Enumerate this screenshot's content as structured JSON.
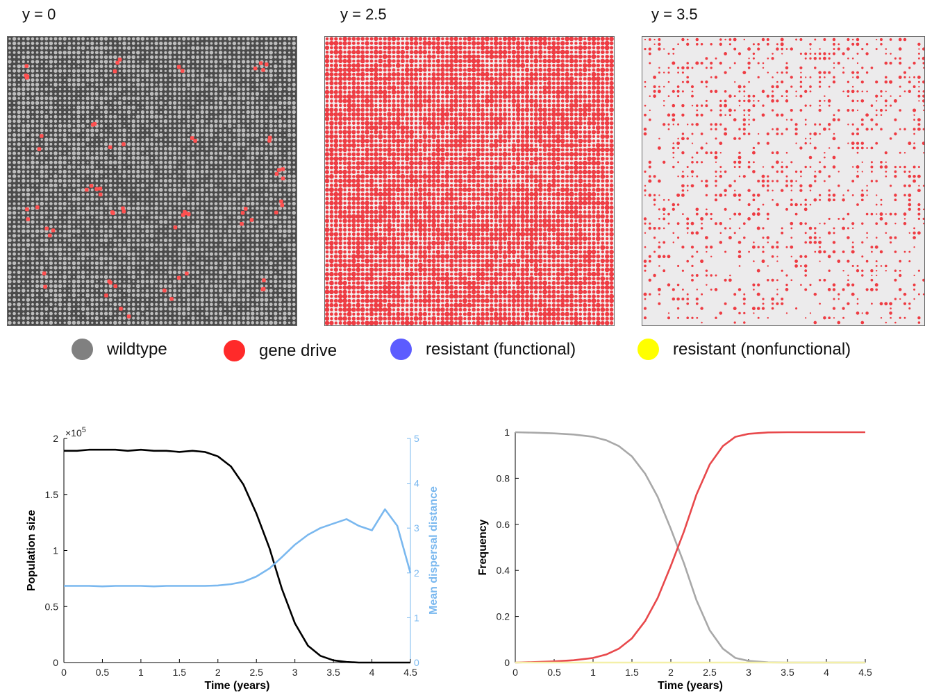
{
  "panels": [
    {
      "title": "y = 0",
      "background": "#4a4a4a",
      "grid": "#bfbfbf"
    },
    {
      "title": "y = 2.5",
      "background": "#f2f2f2",
      "grid": "#ee3b42"
    },
    {
      "title": "y = 3.5",
      "background": "#ecebec",
      "grid": "#ee3b42"
    }
  ],
  "legend": [
    {
      "label": "wildtype",
      "color": "#808080"
    },
    {
      "label": "gene drive",
      "color": "#ff2a2a"
    },
    {
      "label": "resistant (functional)",
      "color": "#5c5cff"
    },
    {
      "label": "resistant (nonfunctional)",
      "color": "#ffff00"
    }
  ],
  "chart_data": [
    {
      "type": "line",
      "xlabel": "Time (years)",
      "ylabel": "Population size",
      "y2label": "Mean dispersal distance",
      "xlim": [
        0,
        4.5
      ],
      "ylim": [
        0,
        2
      ],
      "y2lim": [
        0,
        5
      ],
      "yexponent": "×10",
      "yexponent_power": "5",
      "xticks": [
        "0",
        "0.5",
        "1",
        "1.5",
        "2",
        "2.5",
        "3",
        "3.5",
        "4",
        "4.5"
      ],
      "yticks": [
        "0",
        "0.5",
        "1",
        "1.5",
        "2"
      ],
      "y2ticks": [
        "0",
        "1",
        "2",
        "3",
        "4",
        "5"
      ],
      "series": [
        {
          "axis": "left",
          "color": "#000000",
          "x": [
            0,
            0.17,
            0.33,
            0.5,
            0.67,
            0.83,
            1.0,
            1.17,
            1.33,
            1.5,
            1.67,
            1.83,
            2.0,
            2.17,
            2.33,
            2.5,
            2.67,
            2.83,
            3.0,
            3.17,
            3.33,
            3.5,
            3.67,
            3.83,
            4.0,
            4.17,
            4.33,
            4.5
          ],
          "values": [
            1.89,
            1.89,
            1.9,
            1.9,
            1.9,
            1.89,
            1.9,
            1.89,
            1.89,
            1.88,
            1.89,
            1.88,
            1.84,
            1.75,
            1.59,
            1.33,
            1.02,
            0.66,
            0.35,
            0.15,
            0.06,
            0.02,
            0.005,
            0,
            0,
            0,
            0,
            0
          ]
        },
        {
          "axis": "right",
          "color": "#7ab8ef",
          "x": [
            0,
            0.17,
            0.33,
            0.5,
            0.67,
            0.83,
            1.0,
            1.17,
            1.33,
            1.5,
            1.67,
            1.83,
            2.0,
            2.17,
            2.33,
            2.5,
            2.67,
            2.83,
            3.0,
            3.17,
            3.33,
            3.5,
            3.67,
            3.83,
            4.0,
            4.17,
            4.33,
            4.5
          ],
          "values": [
            1.71,
            1.71,
            1.71,
            1.7,
            1.71,
            1.71,
            1.71,
            1.7,
            1.71,
            1.71,
            1.71,
            1.71,
            1.72,
            1.75,
            1.8,
            1.92,
            2.1,
            2.35,
            2.63,
            2.85,
            3.0,
            3.1,
            3.2,
            3.05,
            2.95,
            3.42,
            3.05,
            2.0
          ]
        }
      ]
    },
    {
      "type": "line",
      "xlabel": "Time (years)",
      "ylabel": "Frequency",
      "xlim": [
        0,
        4.5
      ],
      "ylim": [
        0,
        1
      ],
      "xticks": [
        "0",
        "0.5",
        "1",
        "1.5",
        "2",
        "2.5",
        "3",
        "3.5",
        "4",
        "4.5"
      ],
      "yticks": [
        "0",
        "0.2",
        "0.4",
        "0.6",
        "0.8",
        "1"
      ],
      "series": [
        {
          "color": "#a8a8a8",
          "x": [
            0,
            0.25,
            0.5,
            0.75,
            1.0,
            1.17,
            1.33,
            1.5,
            1.67,
            1.83,
            2.0,
            2.17,
            2.33,
            2.5,
            2.67,
            2.83,
            3.0,
            3.25,
            3.5,
            4.0,
            4.5
          ],
          "values": [
            1.0,
            0.998,
            0.995,
            0.99,
            0.98,
            0.965,
            0.94,
            0.895,
            0.82,
            0.72,
            0.58,
            0.43,
            0.27,
            0.14,
            0.06,
            0.02,
            0.007,
            0.001,
            0,
            0,
            0
          ]
        },
        {
          "color": "#e8484b",
          "x": [
            0,
            0.25,
            0.5,
            0.75,
            1.0,
            1.17,
            1.33,
            1.5,
            1.67,
            1.83,
            2.0,
            2.17,
            2.33,
            2.5,
            2.67,
            2.83,
            3.0,
            3.25,
            3.5,
            4.0,
            4.5
          ],
          "values": [
            0,
            0.002,
            0.005,
            0.01,
            0.02,
            0.035,
            0.06,
            0.105,
            0.18,
            0.28,
            0.42,
            0.57,
            0.73,
            0.86,
            0.94,
            0.98,
            0.993,
            0.999,
            1.0,
            1.0,
            1.0
          ]
        },
        {
          "color": "#f4f0a8",
          "x": [
            0,
            4.5
          ],
          "values": [
            0,
            0
          ]
        }
      ]
    }
  ]
}
